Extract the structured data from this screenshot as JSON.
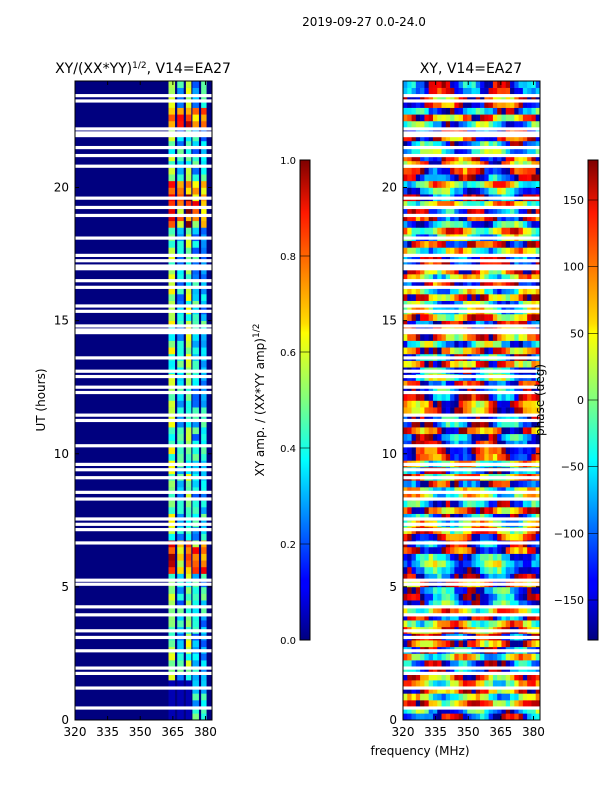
{
  "figure": {
    "suptitle": "2019-09-27 0.0-24.0",
    "xlabel": "frequency (MHz)",
    "ylabel": "UT (hours)"
  },
  "chart_data": [
    {
      "type": "heatmap",
      "title": "XY/(XX*YY)",
      "title_sup": "1/2",
      "title_suffix": ", V14=EA27",
      "x_ticks": [
        "320",
        "335",
        "350",
        "365",
        "380"
      ],
      "x_tick_values": [
        320,
        335,
        350,
        365,
        380
      ],
      "xlim": [
        320,
        383
      ],
      "y_ticks": [
        "0",
        "5",
        "10",
        "15",
        "20"
      ],
      "y_tick_values": [
        0,
        5,
        10,
        15,
        20
      ],
      "ylim": [
        0,
        24
      ],
      "colorbar": {
        "label": "XY amp. / (XX*YY amp)",
        "label_sup": "1/2",
        "ticks": [
          "0.0",
          "0.2",
          "0.4",
          "0.6",
          "0.8",
          "1.0"
        ],
        "tick_values": [
          0.0,
          0.2,
          0.4,
          0.6,
          0.8,
          1.0
        ],
        "range": [
          0,
          1
        ],
        "colormap": "jet"
      }
    },
    {
      "type": "heatmap",
      "title": "XY, V14=EA27",
      "x_ticks": [
        "320",
        "335",
        "350",
        "365",
        "380"
      ],
      "x_tick_values": [
        320,
        335,
        350,
        365,
        380
      ],
      "xlim": [
        320,
        383
      ],
      "y_ticks": [
        "0",
        "5",
        "10",
        "15",
        "20"
      ],
      "y_tick_values": [
        0,
        5,
        10,
        15,
        20
      ],
      "ylim": [
        0,
        24
      ],
      "colorbar": {
        "label": "phase (deg)",
        "ticks": [
          "150",
          "100",
          "50",
          "0",
          "−50",
          "−100",
          "−150"
        ],
        "tick_values": [
          150,
          100,
          50,
          0,
          -50,
          -100,
          -150
        ],
        "range": [
          -180,
          180
        ],
        "colormap": "jet"
      }
    }
  ],
  "flagged_hours": [
    0.45,
    1.2,
    1.75,
    1.95,
    2.6,
    3.1,
    3.35,
    3.95,
    4.25,
    5.1,
    5.25,
    6.65,
    7.15,
    7.35,
    7.55,
    8.3,
    8.55,
    9.1,
    9.4,
    9.6,
    10.3,
    11.25,
    11.45,
    12.3,
    12.5,
    12.9,
    13.1,
    13.6,
    14.55,
    14.65,
    14.8,
    15.35,
    15.55,
    16.25,
    16.5,
    16.95,
    17.05,
    17.25,
    17.45,
    18.1,
    18.95,
    19.25,
    19.6,
    20.8,
    21.2,
    21.5,
    21.95,
    22.05,
    22.2,
    23.25,
    23.45
  ],
  "colors": {
    "background": "#ffffff",
    "axis": "#000000",
    "jet_low": "#00007f",
    "jet_high": "#7f0000"
  }
}
